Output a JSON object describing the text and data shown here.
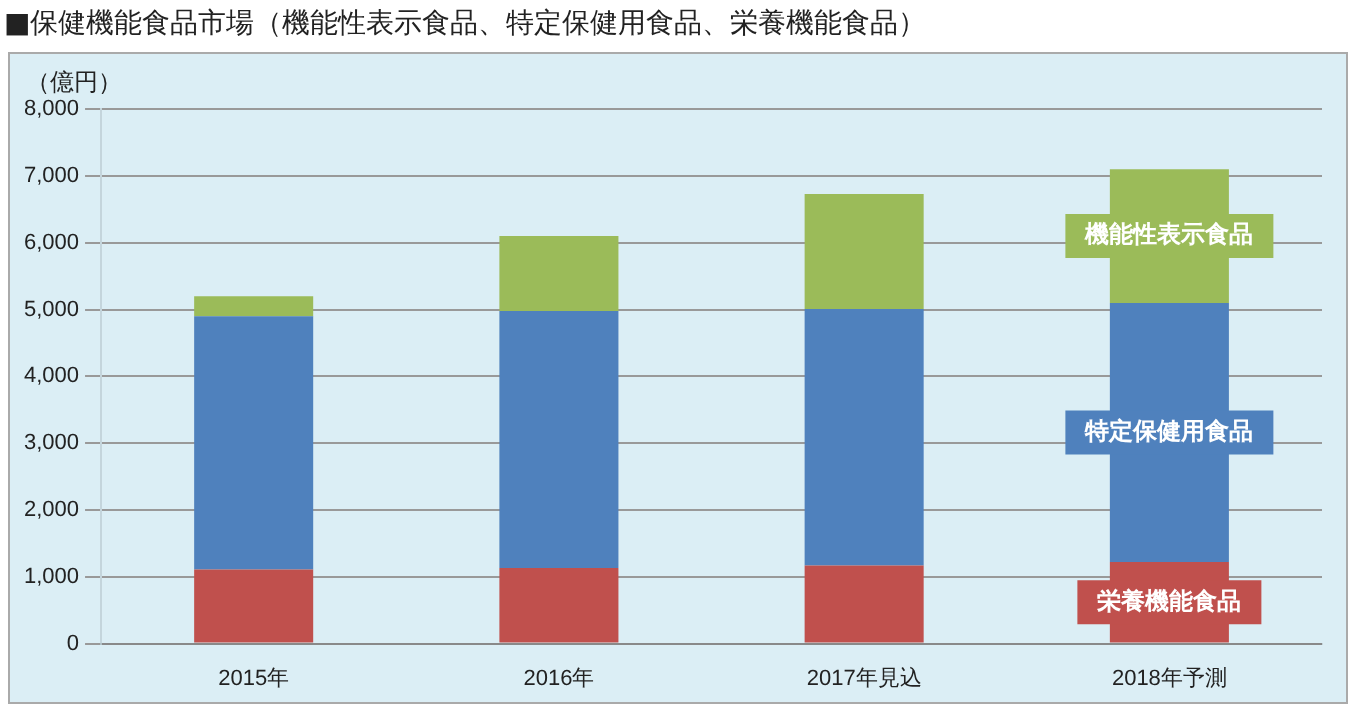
{
  "chart_data": {
    "type": "bar",
    "title": "■保健機能食品市場（機能性表示食品、特定保健用食品、栄養機能食品）",
    "ylabel": "（億円）",
    "categories": [
      "2015年",
      "2016年",
      "2017年見込",
      "2018年予測"
    ],
    "stacked": true,
    "series": [
      {
        "name": "栄養機能食品",
        "color": "#c0504d",
        "values": [
          1110,
          1130,
          1170,
          1220
        ]
      },
      {
        "name": "特定保健用食品",
        "color": "#4f81bd",
        "values": [
          3790,
          3850,
          3840,
          3880
        ]
      },
      {
        "name": "機能性表示食品",
        "color": "#9bbb59",
        "values": [
          300,
          1120,
          1720,
          2000
        ]
      }
    ],
    "ylim": [
      0,
      8000
    ],
    "yticks": [
      0,
      {
        "value": 1000,
        "label": "1,000"
      },
      {
        "value": 2000,
        "label": "2,000"
      },
      {
        "value": 3000,
        "label": "3,000"
      },
      {
        "value": 4000,
        "label": "4,000"
      },
      {
        "value": 5000,
        "label": "5,000"
      },
      {
        "value": 6000,
        "label": "6,000"
      },
      {
        "value": 7000,
        "label": "7,000"
      },
      {
        "value": 8000,
        "label": "8,000"
      }
    ],
    "grid": "y",
    "legend": false
  }
}
